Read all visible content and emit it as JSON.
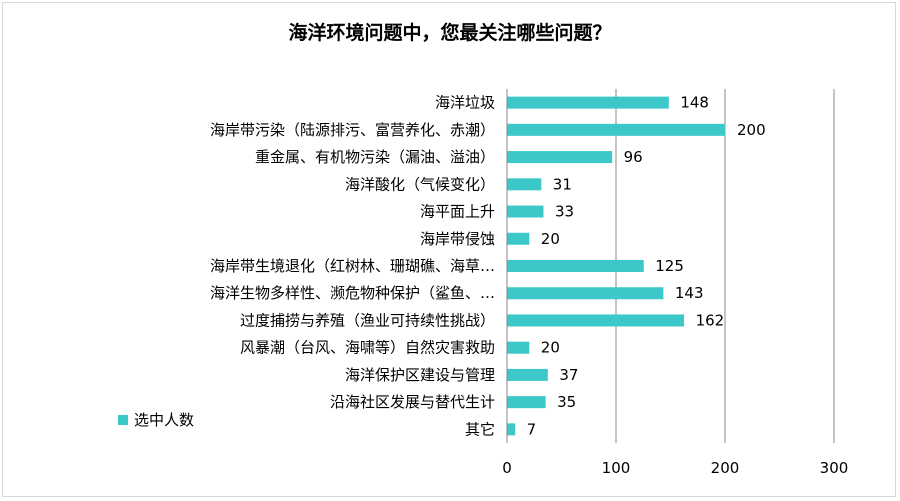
{
  "chart_data": {
    "type": "bar",
    "orientation": "horizontal",
    "title": "海洋环境问题中，您最关注哪些问题？",
    "categories": [
      "海洋垃圾",
      "海岸带污染（陆源排污、富营养化、赤潮）",
      "重金属、有机物污染（漏油、溢油）",
      "海洋酸化（气候变化）",
      "海平面上升",
      "海岸带侵蚀",
      "海岸带生境退化（红树林、珊瑚礁、海草…",
      "海洋生物多样性、濒危物种保护（鲨鱼、…",
      "过度捕捞与养殖（渔业可持续性挑战）",
      "风暴潮（台风、海啸等）自然灾害救助",
      "海洋保护区建设与管理",
      "沿海社区发展与替代生计",
      "其它"
    ],
    "series": [
      {
        "name": "选中人数",
        "values": [
          148,
          200,
          96,
          31,
          33,
          20,
          125,
          143,
          162,
          20,
          37,
          35,
          7
        ]
      }
    ],
    "xlim": [
      0,
      300
    ],
    "xticks": [
      0,
      100,
      200,
      300
    ],
    "grid": true,
    "legend_position": "bottom-left",
    "bar_color": "#3cc8c8"
  }
}
